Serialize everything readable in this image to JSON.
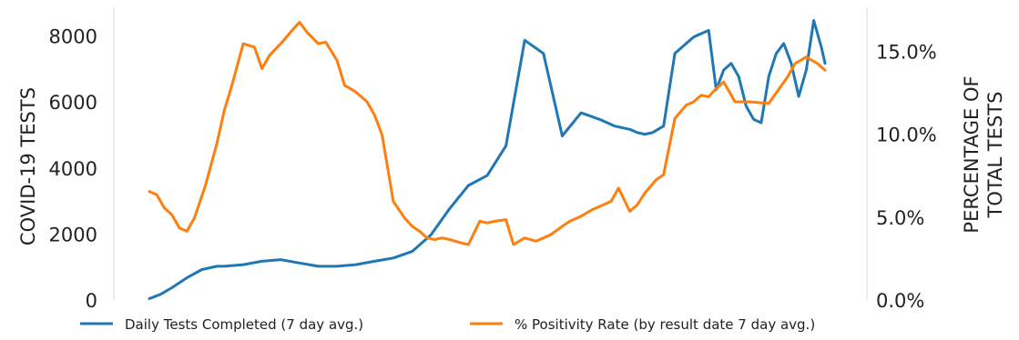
{
  "chart_data": {
    "type": "line",
    "left_axis": {
      "label": "COVID-19 TESTS",
      "range": [
        0,
        8900
      ],
      "ticks": [
        0,
        2000,
        4000,
        6000,
        8000
      ],
      "tick_labels": [
        "0",
        "2000",
        "4000",
        "6000",
        "8000"
      ]
    },
    "right_axis": {
      "label_lines": [
        "PERCENTAGE OF",
        "TOTAL TESTS"
      ],
      "range": [
        0,
        17.7
      ],
      "ticks": [
        0,
        5,
        10,
        15
      ],
      "tick_labels": [
        "0.0%",
        "5.0%",
        "10.0%",
        "15.0%"
      ]
    },
    "x_range": [
      0,
      180
    ],
    "series": [
      {
        "name": "Daily Tests Completed (7 day avg.)",
        "axis": "left",
        "color": "#1f77b4",
        "x": [
          0,
          3,
          6,
          10,
          14,
          18,
          20,
          25,
          30,
          35,
          40,
          45,
          50,
          55,
          60,
          65,
          70,
          75,
          80,
          85,
          90,
          95,
          100,
          105,
          110,
          115,
          120,
          124,
          128,
          130,
          132,
          134,
          137,
          140,
          143,
          145,
          147,
          149,
          151,
          153,
          155,
          157,
          159,
          161,
          163,
          165,
          167,
          169,
          171,
          173,
          175,
          177,
          179,
          180
        ],
        "y": [
          70,
          200,
          400,
          700,
          950,
          1050,
          1050,
          1100,
          1200,
          1250,
          1150,
          1050,
          1050,
          1100,
          1200,
          1300,
          1500,
          2000,
          2800,
          3500,
          3800,
          4700,
          7900,
          7500,
          5000,
          5700,
          5500,
          5300,
          5200,
          5100,
          5050,
          5100,
          5300,
          7500,
          7800,
          8000,
          8100,
          8200,
          6400,
          7000,
          7200,
          6800,
          5900,
          5500,
          5400,
          6800,
          7500,
          7800,
          7200,
          6200,
          7000,
          8500,
          7700,
          7200
        ]
      },
      {
        "name": "% Positivity Rate (by result date 7 day avg.)",
        "axis": "left_pct",
        "axis_right": "right",
        "color": "#ff7f0e",
        "x": [
          0,
          2,
          4,
          6,
          8,
          10,
          12,
          15,
          18,
          20,
          22,
          25,
          28,
          30,
          32,
          35,
          38,
          40,
          42,
          45,
          47,
          50,
          52,
          55,
          58,
          60,
          62,
          65,
          68,
          70,
          72,
          74,
          76,
          78,
          80,
          83,
          85,
          88,
          90,
          92,
          95,
          97,
          100,
          103,
          105,
          107,
          110,
          112,
          115,
          118,
          120,
          123,
          125,
          128,
          130,
          132,
          135,
          137,
          140,
          143,
          145,
          147,
          149,
          151,
          153,
          156,
          160,
          165,
          170,
          172,
          175,
          178,
          180
        ],
        "y": [
          6.6,
          6.4,
          5.6,
          5.2,
          4.4,
          4.2,
          5.0,
          7.0,
          9.5,
          11.5,
          13.0,
          15.5,
          15.3,
          14.0,
          14.8,
          15.5,
          16.3,
          16.8,
          16.2,
          15.5,
          15.6,
          14.5,
          13.0,
          12.6,
          12.0,
          11.2,
          10.0,
          6.0,
          5.0,
          4.5,
          4.2,
          3.8,
          3.7,
          3.8,
          3.7,
          3.5,
          3.4,
          4.8,
          4.7,
          4.8,
          4.9,
          3.4,
          3.8,
          3.6,
          3.8,
          4.0,
          4.5,
          4.8,
          5.1,
          5.5,
          5.7,
          6.0,
          6.8,
          5.4,
          5.8,
          6.5,
          7.3,
          7.6,
          11.0,
          11.8,
          12.0,
          12.4,
          12.3,
          12.8,
          13.2,
          12.0,
          12.0,
          11.9,
          13.5,
          14.3,
          14.7,
          14.3,
          13.9
        ]
      }
    ],
    "legend": {
      "placement": "bottom",
      "columns": 2
    },
    "grid": false
  }
}
